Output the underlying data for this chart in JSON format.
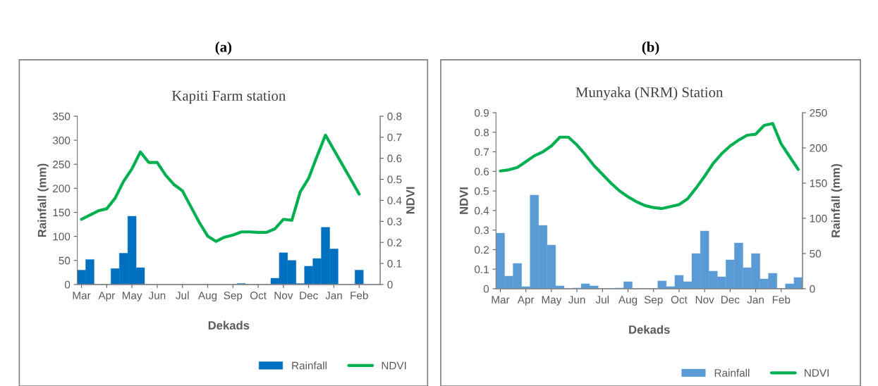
{
  "chart_data": [
    {
      "type": "bar",
      "title": "Kapiti Farm station",
      "xlabel": "Dekads",
      "ylabel": "Rainfall (mm)",
      "y2label": "NDVI",
      "annotations": [
        "(a)"
      ],
      "categories": [
        "Mar",
        null,
        null,
        "Apr",
        null,
        null,
        "May",
        null,
        null,
        "Jun",
        null,
        null,
        "Jul",
        null,
        null,
        "Aug",
        null,
        null,
        "Sep",
        null,
        null,
        "Oct",
        null,
        null,
        "Nov",
        null,
        null,
        "Dec",
        null,
        null,
        "Jan",
        null,
        null,
        "Feb",
        null,
        null
      ],
      "series": [
        {
          "name": "Rainfall",
          "color": "#0070c0",
          "values": [
            30,
            52,
            0,
            0,
            33,
            65,
            142,
            35,
            0,
            0,
            0,
            0,
            0,
            0,
            0,
            0,
            0,
            0,
            0,
            2,
            0,
            0,
            0,
            13,
            66,
            50,
            2,
            38,
            54,
            119,
            74,
            0,
            0,
            30,
            0,
            0
          ]
        },
        {
          "name": "NDVI",
          "type": "line",
          "axis": "y2",
          "color": "#00b050",
          "values": [
            0.31,
            0.33,
            0.35,
            0.36,
            0.41,
            0.49,
            0.55,
            0.63,
            0.58,
            0.58,
            0.52,
            0.475,
            0.445,
            0.37,
            0.295,
            0.23,
            0.205,
            0.225,
            0.235,
            0.25,
            0.25,
            0.248,
            0.248,
            0.265,
            0.31,
            0.305,
            0.44,
            0.505,
            0.61,
            0.71,
            0.64,
            0.57,
            0.5,
            0.43,
            null,
            null
          ]
        }
      ],
      "ylim": [
        0,
        350
      ],
      "yticks": [
        0,
        50,
        100,
        150,
        200,
        250,
        300,
        350
      ],
      "y2lim": [
        0,
        0.8
      ],
      "y2ticks": [
        0,
        0.1,
        0.2,
        0.3,
        0.4,
        0.5,
        0.6,
        0.7,
        0.8
      ],
      "legend": "bottom right",
      "grid": false
    },
    {
      "type": "bar",
      "title": "Munyaka (NRM) Station",
      "xlabel": "Dekads",
      "ylabel": "NDVI",
      "y2label": "Rainfall (mm)",
      "annotations": [
        "(b)"
      ],
      "categories": [
        "Mar",
        null,
        null,
        "Apr",
        null,
        null,
        "May",
        null,
        null,
        "Jun",
        null,
        null,
        "Jul",
        null,
        null,
        "Aug",
        null,
        null,
        "Sep",
        null,
        null,
        "Oct",
        null,
        null,
        "Nov",
        null,
        null,
        "Dec",
        null,
        null,
        "Jan",
        null,
        null,
        "Feb",
        null,
        null
      ],
      "series": [
        {
          "name": "Rainfall",
          "axis": "y2",
          "color": "#5b9bd5",
          "values": [
            79,
            18,
            36,
            3,
            133,
            90,
            62,
            4,
            0,
            1,
            7,
            4,
            0,
            0,
            1,
            10,
            0,
            0,
            0,
            11,
            3,
            19,
            10,
            50,
            82,
            25,
            17,
            41,
            65,
            30,
            50,
            14,
            22,
            0,
            7,
            16
          ]
        },
        {
          "name": "NDVI",
          "type": "line",
          "color": "#00b050",
          "values": [
            0.602,
            0.608,
            0.62,
            0.65,
            0.68,
            0.7,
            0.73,
            0.775,
            0.775,
            0.735,
            0.685,
            0.63,
            0.585,
            0.54,
            0.5,
            0.47,
            0.445,
            0.425,
            0.415,
            0.41,
            0.42,
            0.43,
            0.46,
            0.515,
            0.575,
            0.64,
            0.69,
            0.73,
            0.76,
            0.785,
            0.79,
            0.835,
            0.845,
            0.74,
            0.675,
            0.61
          ]
        }
      ],
      "ylim": [
        0,
        0.9
      ],
      "yticks": [
        0,
        0.1,
        0.2,
        0.3,
        0.4,
        0.5,
        0.6,
        0.7,
        0.8,
        0.9
      ],
      "y2lim": [
        0,
        250
      ],
      "y2ticks": [
        0,
        50,
        100,
        150,
        200,
        250
      ],
      "legend": "bottom right",
      "grid": false
    }
  ]
}
